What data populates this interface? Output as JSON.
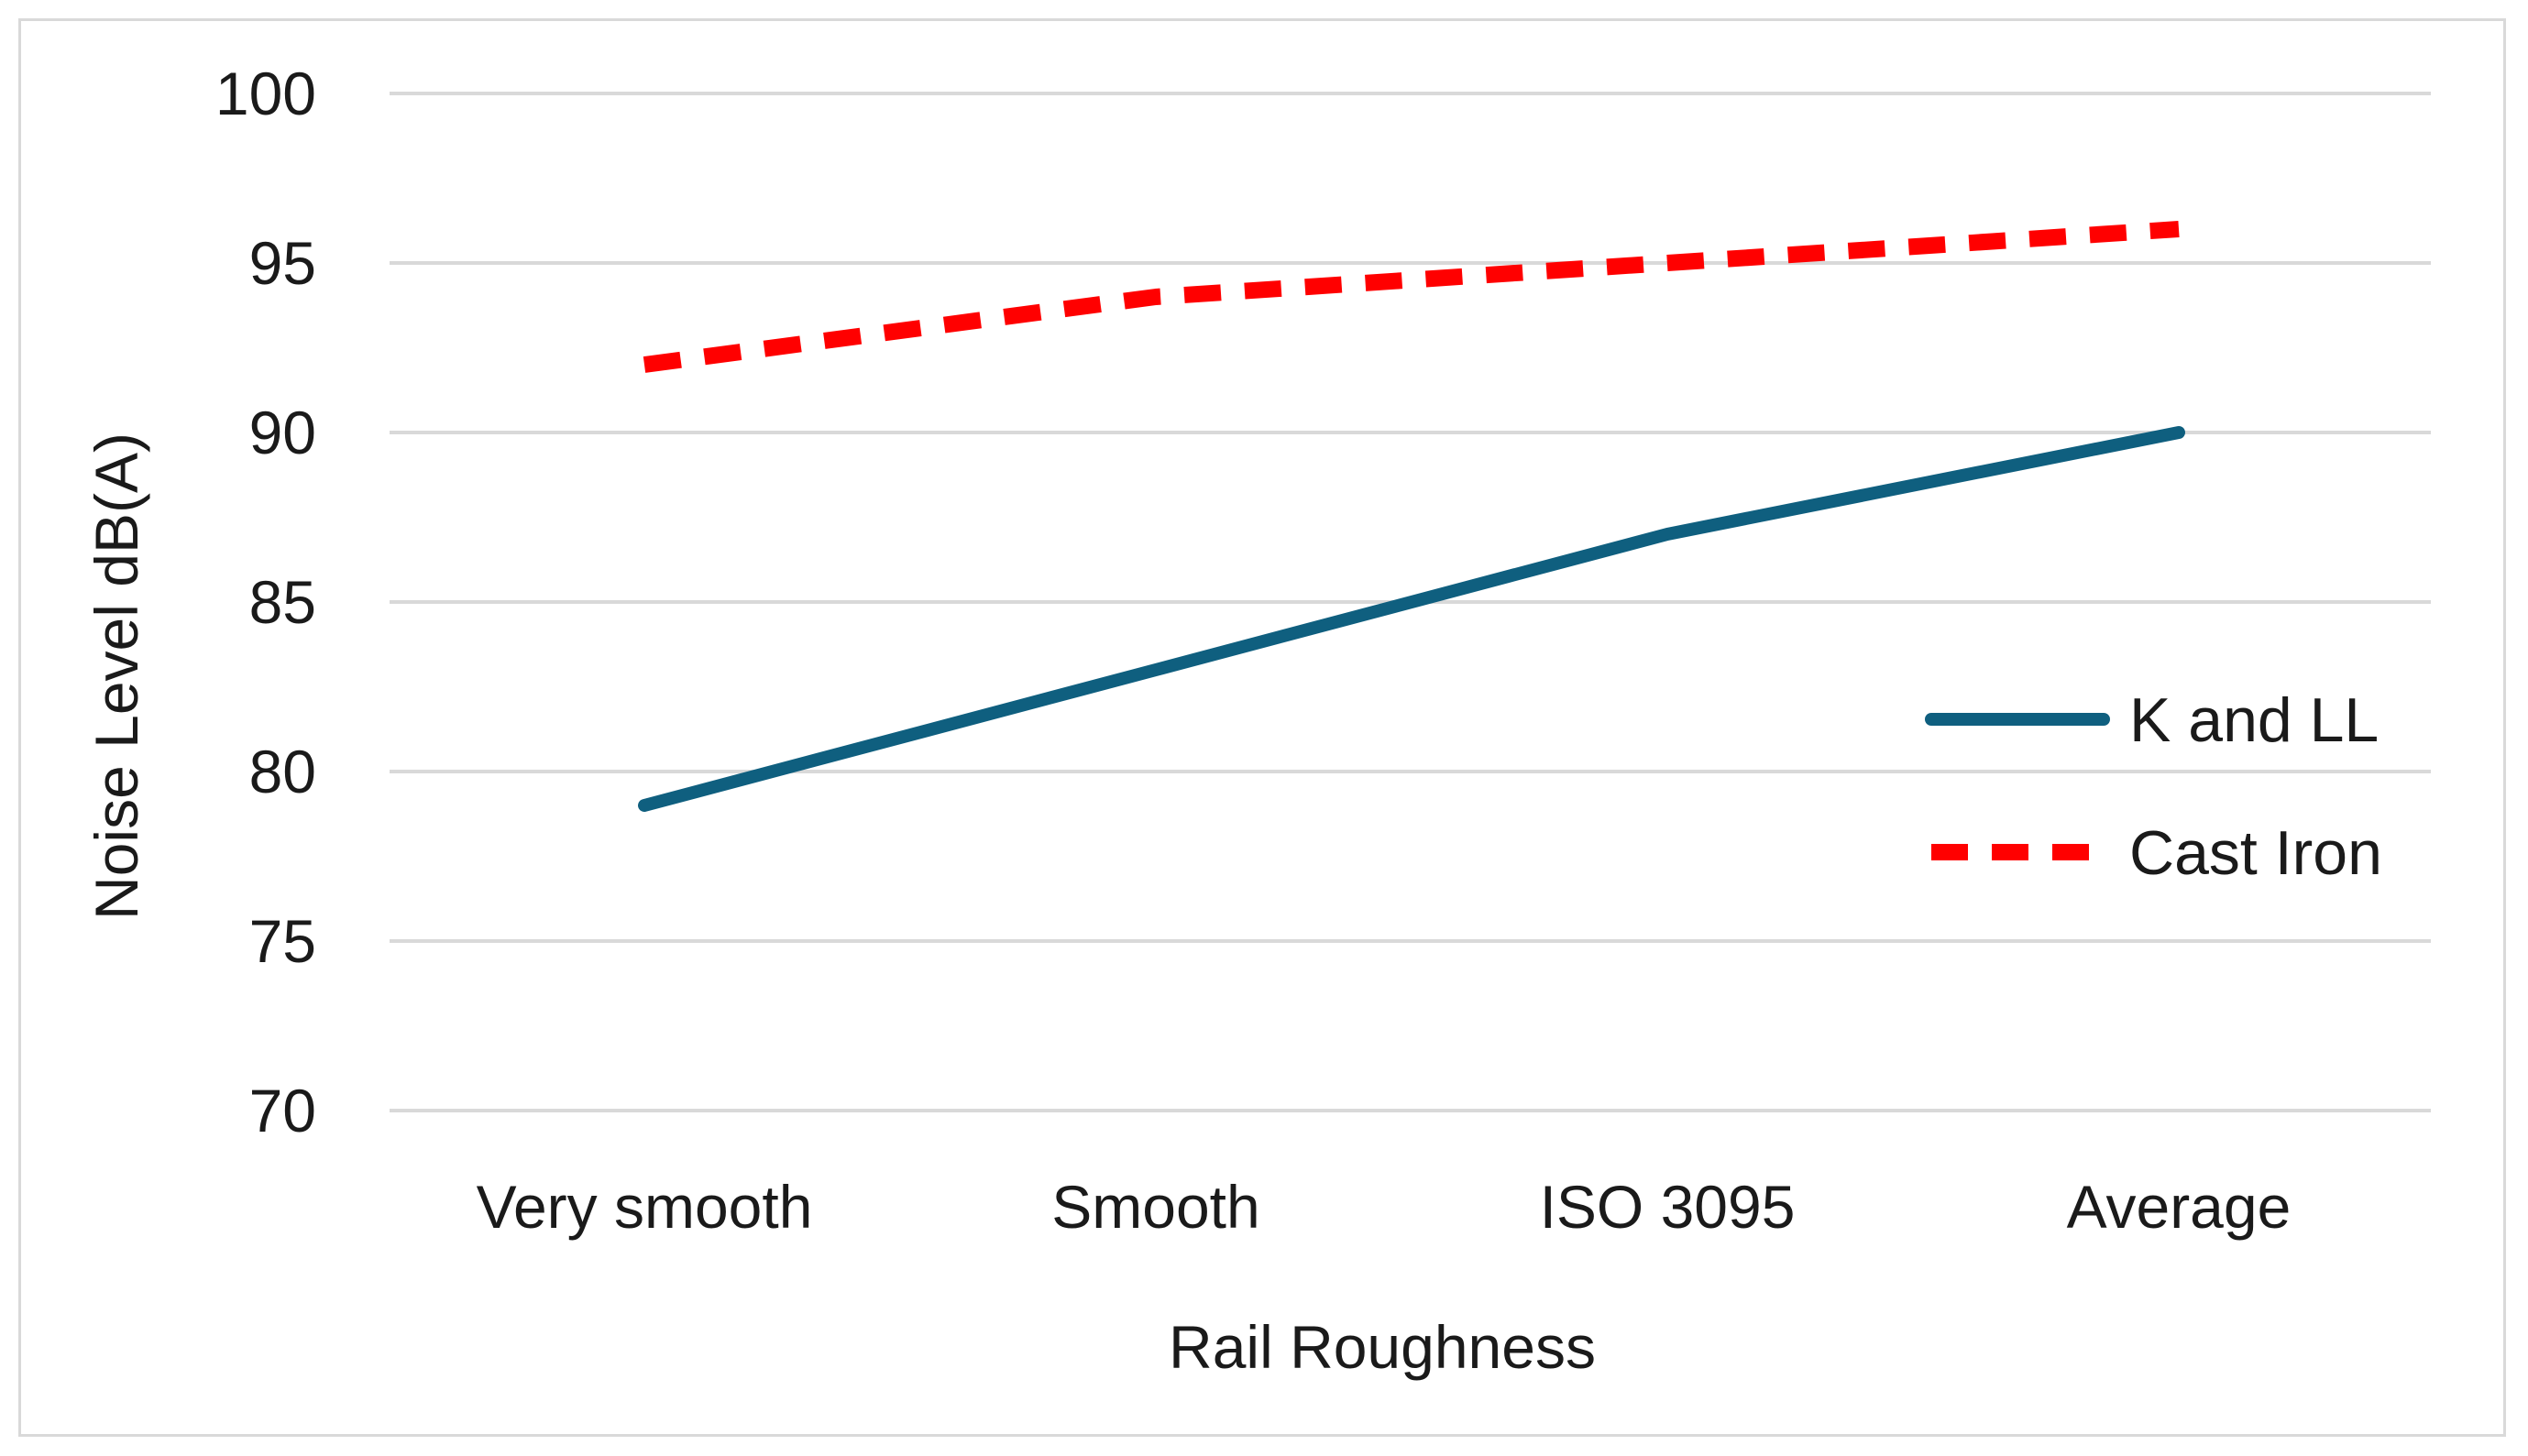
{
  "chart_data": {
    "type": "line",
    "title": "",
    "xlabel": "Rail Roughness",
    "ylabel": "Noise Level dB(A)",
    "categories": [
      "Very smooth",
      "Smooth",
      "ISO 3095",
      "Average"
    ],
    "ylim": [
      70,
      100
    ],
    "yticks": [
      70,
      75,
      80,
      85,
      90,
      95,
      100
    ],
    "grid": true,
    "legend_position": "right",
    "series": [
      {
        "name": "K and LL",
        "values": [
          79,
          83,
          87,
          90
        ],
        "color": "#0f5f7f",
        "style": "solid"
      },
      {
        "name": "Cast Iron",
        "values": [
          92,
          94,
          95,
          96
        ],
        "color": "#ff0000",
        "style": "dashed"
      }
    ]
  }
}
